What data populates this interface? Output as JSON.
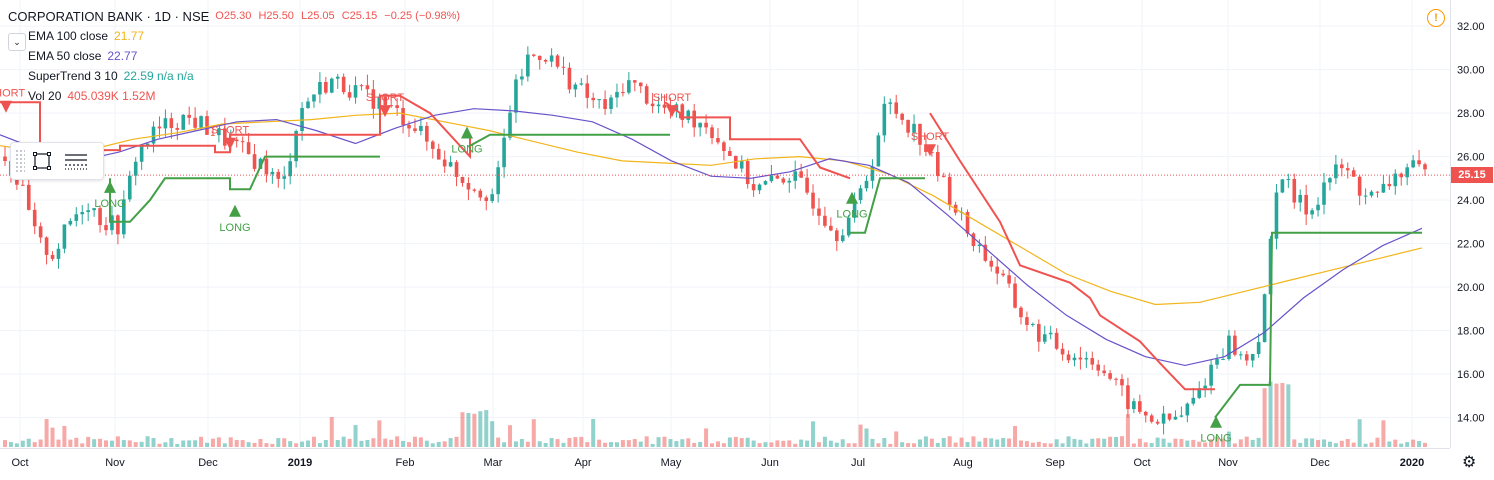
{
  "header": {
    "symbol": "CORPORATION BANK · 1D · NSE",
    "open": "O25.30",
    "high": "H25.50",
    "low": "L25.05",
    "close": "C25.15",
    "change": "−0.25 (−0.98%)"
  },
  "indicators": [
    {
      "label": "EMA 100 close",
      "value": "21.77",
      "color": "#f2b51a"
    },
    {
      "label": "EMA 50 close",
      "value": "22.77",
      "color": "#6a52c9"
    },
    {
      "label": "SuperTrend 3 10",
      "value": "22.59  n/a  n/a",
      "color": "#26a69a"
    },
    {
      "label": "Vol 20",
      "value": "405.039K  1.52M",
      "color": "#ef5350"
    }
  ],
  "price_tag": "25.15",
  "alert_icon": "!",
  "colors": {
    "up": "#26a69a",
    "down": "#ef5350",
    "long": "#43a047",
    "short": "#ef5350",
    "ema50": "#6a52c9",
    "ema100": "#f2b51a"
  },
  "chart_data": {
    "type": "candlestick",
    "price_ticks": [
      "32.00",
      "30.00",
      "28.00",
      "26.00",
      "24.00",
      "22.00",
      "20.00",
      "18.00",
      "16.00",
      "14.00"
    ],
    "price_tick_values": [
      32,
      30,
      28,
      26,
      24,
      22,
      20,
      18,
      16,
      14
    ],
    "ylim": [
      12.6,
      33.2
    ],
    "time_ticks": [
      "Oct",
      "Nov",
      "Dec",
      "2019",
      "Feb",
      "Mar",
      "Apr",
      "May",
      "Jun",
      "Jul",
      "Aug",
      "Sep",
      "Oct",
      "Nov",
      "Dec",
      "2020"
    ],
    "last_price": 25.15,
    "close_series_approx": [
      26.0,
      24.5,
      22.0,
      21.5,
      23.0,
      24.0,
      23.0,
      22.8,
      26.0,
      27.0,
      27.5,
      27.8,
      27.5,
      27.0,
      26.5,
      26.0,
      25.5,
      24.5,
      28.0,
      29.0,
      29.5,
      29.2,
      28.8,
      28.5,
      28.0,
      27.5,
      26.5,
      25.8,
      25.0,
      24.5,
      24.2,
      28.5,
      30.5,
      30.8,
      30.0,
      29.2,
      28.5,
      28.2,
      29.5,
      29.0,
      28.3,
      28.0,
      27.8,
      27.5,
      26.5,
      25.5,
      24.5,
      24.8,
      25.2,
      24.5,
      23.5,
      22.5,
      23.5,
      25.5,
      28.5,
      27.8,
      27.0,
      25.5,
      24.0,
      22.5,
      21.5,
      20.5,
      19.0,
      18.0,
      17.5,
      17.0,
      16.8,
      16.5,
      15.5,
      14.5,
      14.0,
      13.8,
      14.0,
      15.0,
      16.5,
      17.5,
      16.5,
      18.0,
      25.5,
      24.0,
      23.5,
      25.0,
      25.5,
      24.5,
      24.0,
      25.0,
      25.5,
      25.15
    ],
    "ema50_approx": [
      27.0,
      26.3,
      25.8,
      26.2,
      26.8,
      27.2,
      27.6,
      27.7,
      27.2,
      26.6,
      27.3,
      27.9,
      28.2,
      28.1,
      27.9,
      27.6,
      26.8,
      25.8,
      25.1,
      25.0,
      25.3,
      25.9,
      25.6,
      24.8,
      23.3,
      21.7,
      20.1,
      18.7,
      17.6,
      16.8,
      16.4,
      16.8,
      17.9,
      19.5,
      20.8,
      21.9,
      22.7
    ],
    "ema100_approx": [
      26.5,
      26.2,
      26.3,
      26.8,
      27.1,
      27.5,
      27.6,
      27.7,
      27.9,
      28.0,
      27.6,
      27.2,
      26.7,
      26.2,
      25.8,
      25.7,
      25.6,
      25.9,
      26.0,
      25.8,
      25.2,
      24.2,
      23.0,
      21.8,
      20.6,
      19.8,
      19.2,
      19.3,
      19.8,
      20.3,
      20.8,
      21.3,
      21.8
    ],
    "signals": [
      {
        "type": "SHORT",
        "price": 28.2
      },
      {
        "type": "LONG",
        "price": 24.7
      },
      {
        "type": "SHORT",
        "price": 26.5
      },
      {
        "type": "LONG",
        "price": 23.6
      },
      {
        "type": "SHORT",
        "price": 28.0
      },
      {
        "type": "LONG",
        "price": 27.2
      },
      {
        "type": "SHORT",
        "price": 28.0
      },
      {
        "type": "LONG",
        "price": 24.2
      },
      {
        "type": "SHORT",
        "price": 26.2
      },
      {
        "type": "LONG",
        "price": 13.9
      }
    ]
  }
}
